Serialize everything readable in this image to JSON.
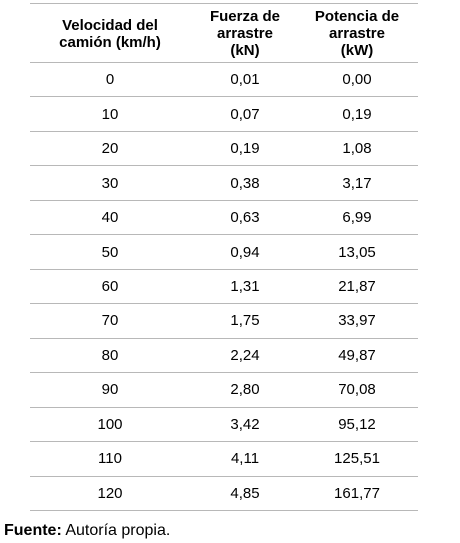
{
  "table": {
    "headers": [
      [
        "Velocidad del",
        "camión (km/h)"
      ],
      [
        "Fuerza de",
        "arrastre",
        "(kN)"
      ],
      [
        "Potencia de",
        "arrastre",
        "(kW)"
      ]
    ],
    "rows": [
      [
        "0",
        "0,01",
        "0,00"
      ],
      [
        "10",
        "0,07",
        "0,19"
      ],
      [
        "20",
        "0,19",
        "1,08"
      ],
      [
        "30",
        "0,38",
        "3,17"
      ],
      [
        "40",
        "0,63",
        "6,99"
      ],
      [
        "50",
        "0,94",
        "13,05"
      ],
      [
        "60",
        "1,31",
        "21,87"
      ],
      [
        "70",
        "1,75",
        "33,97"
      ],
      [
        "80",
        "2,24",
        "49,87"
      ],
      [
        "90",
        "2,80",
        "70,08"
      ],
      [
        "100",
        "3,42",
        "95,12"
      ],
      [
        "110",
        "4,11",
        "125,51"
      ],
      [
        "120",
        "4,85",
        "161,77"
      ]
    ]
  },
  "footer": {
    "label": "Fuente:",
    "text": "Autoría propia."
  }
}
